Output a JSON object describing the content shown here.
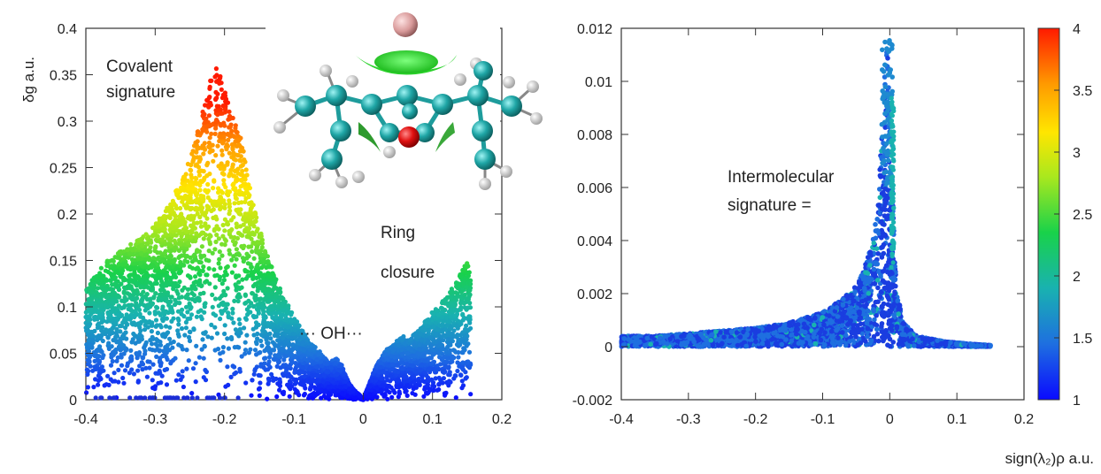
{
  "chart_data": [
    {
      "type": "scatter",
      "ylabel": "δg a.u.",
      "xlim": [
        -0.4,
        0.2
      ],
      "ylim": [
        0,
        0.4
      ],
      "x_ticks": [
        "-0.4",
        "-0.3",
        "-0.2",
        "-0.1",
        "0",
        "0.1",
        "0.2"
      ],
      "y_ticks": [
        "0",
        "0.05",
        "0.1",
        "0.15",
        "0.2",
        "0.25",
        "0.3",
        "0.35",
        "0.4"
      ],
      "annotations": [
        "Covalent",
        "signature",
        "Ring",
        "closure",
        "··· OH···"
      ],
      "envelope": {
        "x": [
          -0.4,
          -0.37,
          -0.34,
          -0.31,
          -0.28,
          -0.26,
          -0.245,
          -0.235,
          -0.225,
          -0.215,
          -0.205,
          -0.195,
          -0.185,
          -0.175,
          -0.165,
          -0.155,
          -0.14,
          -0.12,
          -0.1,
          -0.08,
          -0.06,
          -0.05,
          -0.04,
          -0.032,
          -0.025,
          -0.015,
          -0.005,
          0.0,
          0.005,
          0.015,
          0.025,
          0.035,
          0.045,
          0.055,
          0.065,
          0.08,
          0.1,
          0.12,
          0.14,
          0.15,
          0.155
        ],
        "y": [
          0.12,
          0.15,
          0.165,
          0.18,
          0.21,
          0.24,
          0.27,
          0.3,
          0.33,
          0.36,
          0.35,
          0.32,
          0.3,
          0.28,
          0.24,
          0.2,
          0.16,
          0.12,
          0.09,
          0.065,
          0.05,
          0.04,
          0.045,
          0.04,
          0.025,
          0.012,
          0.005,
          0.0,
          0.01,
          0.03,
          0.045,
          0.055,
          0.06,
          0.07,
          0.065,
          0.075,
          0.095,
          0.11,
          0.135,
          0.15,
          0.13
        ]
      },
      "colormap": [
        "#0a0aff",
        "#1e6fe0",
        "#19b2b0",
        "#19d24a",
        "#a9e81e",
        "#ffe600",
        "#ff9a00",
        "#ff1a00"
      ]
    },
    {
      "type": "scatter",
      "xlabel": "sign(λ₂)ρ a.u.",
      "xlim": [
        -0.4,
        0.2
      ],
      "ylim": [
        -0.002,
        0.012
      ],
      "x_ticks": [
        "-0.4",
        "-0.3",
        "-0.2",
        "-0.1",
        "0",
        "0.1",
        "0.2"
      ],
      "y_ticks": [
        "-0.002",
        "0",
        "0.002",
        "0.004",
        "0.006",
        "0.008",
        "0.01",
        "0.012"
      ],
      "annotations": [
        "Intermolecular",
        "signature ="
      ],
      "colorbar": {
        "min": 1,
        "max": 4,
        "ticks": [
          "1",
          "1.5",
          "2",
          "2.5",
          "3",
          "3.5",
          "4"
        ]
      },
      "envelope": {
        "x": [
          -0.4,
          -0.35,
          -0.3,
          -0.25,
          -0.2,
          -0.15,
          -0.1,
          -0.07,
          -0.05,
          -0.04,
          -0.03,
          -0.02,
          -0.015,
          -0.01,
          -0.005,
          0.0,
          0.005,
          0.01,
          0.02,
          0.04,
          0.08,
          0.12,
          0.15
        ],
        "y": [
          0.0004,
          0.0004,
          0.0005,
          0.0006,
          0.0007,
          0.0009,
          0.0013,
          0.0018,
          0.0023,
          0.0028,
          0.0036,
          0.0048,
          0.0065,
          0.009,
          0.012,
          0.0095,
          0.0055,
          0.0022,
          0.0009,
          0.0004,
          0.0002,
          0.0001,
          5e-05
        ]
      }
    }
  ]
}
